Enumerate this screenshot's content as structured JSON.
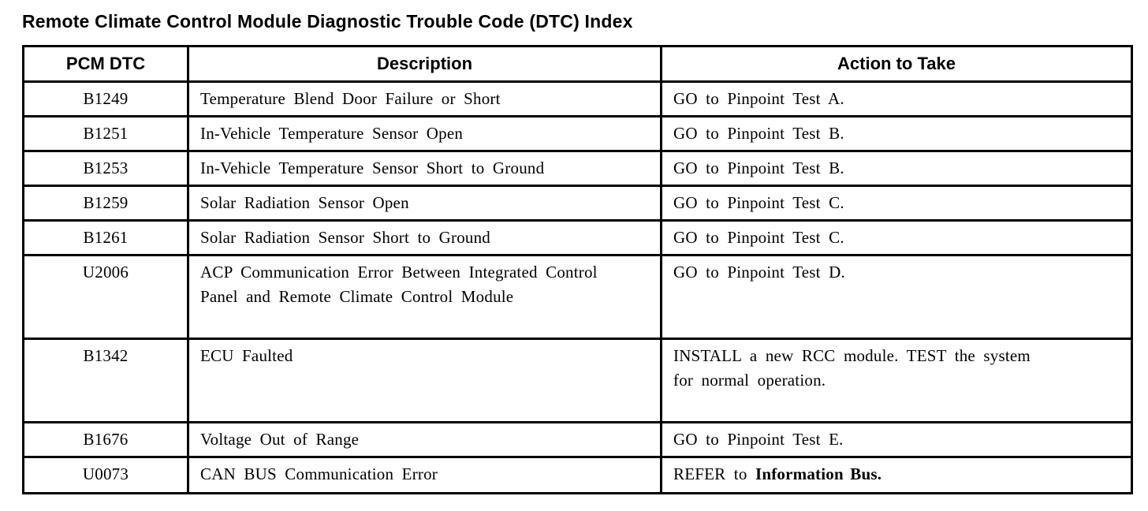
{
  "page_title": "Remote Climate Control Module Diagnostic Trouble Code (DTC) Index",
  "table": {
    "headers": {
      "code": "PCM DTC",
      "description": "Description",
      "action": "Action to Take"
    },
    "rows": [
      {
        "code": "B1249",
        "description": "Temperature Blend Door Failure or Short",
        "action": "GO to Pinpoint Test A.",
        "action_bold": ""
      },
      {
        "code": "B1251",
        "description": "In-Vehicle Temperature Sensor Open",
        "action": "GO to Pinpoint Test B.",
        "action_bold": ""
      },
      {
        "code": "B1253",
        "description": "In-Vehicle Temperature Sensor Short to Ground",
        "action": "GO to Pinpoint Test B.",
        "action_bold": ""
      },
      {
        "code": "B1259",
        "description": "Solar Radiation Sensor Open",
        "action": "GO to Pinpoint Test C.",
        "action_bold": ""
      },
      {
        "code": "B1261",
        "description": "Solar Radiation Sensor Short to Ground",
        "action": "GO to Pinpoint Test C.",
        "action_bold": ""
      },
      {
        "code": "U2006",
        "description": "ACP Communication Error Between Integrated Control Panel and Remote Climate Control Module",
        "action": "GO to Pinpoint Test D.",
        "action_bold": ""
      },
      {
        "code": "B1342",
        "description": "ECU Faulted",
        "action": "INSTALL a new RCC module. TEST the system for normal operation.",
        "action_bold": ""
      },
      {
        "code": "B1676",
        "description": "Voltage Out of Range",
        "action": "GO to Pinpoint Test E.",
        "action_bold": ""
      },
      {
        "code": "U0073",
        "description": "CAN BUS Communication Error",
        "action": "REFER to ",
        "action_bold": "Information Bus."
      }
    ]
  }
}
